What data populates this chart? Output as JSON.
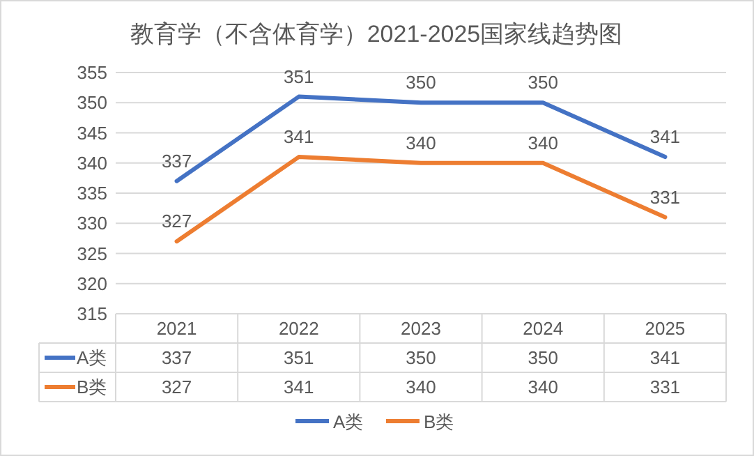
{
  "chart_data": {
    "type": "line",
    "title": "教育学（不含体育学）2021-2025国家线趋势图",
    "categories": [
      "2021",
      "2022",
      "2023",
      "2024",
      "2025"
    ],
    "series": [
      {
        "name": "A类",
        "color": "#4472c4",
        "values": [
          337,
          351,
          350,
          350,
          341
        ]
      },
      {
        "name": "B类",
        "color": "#ed7d31",
        "values": [
          327,
          341,
          340,
          340,
          331
        ]
      }
    ],
    "annotations": [
      "337",
      "351",
      "350",
      "350",
      "341",
      "327",
      "341",
      "340",
      "340",
      "331"
    ],
    "ylim": [
      315,
      355
    ],
    "yticks": [
      315,
      320,
      325,
      330,
      335,
      340,
      345,
      350,
      355
    ],
    "grid": "y",
    "data_labels": true,
    "legend": "bottom",
    "marker": "none",
    "line_style": "solid"
  }
}
